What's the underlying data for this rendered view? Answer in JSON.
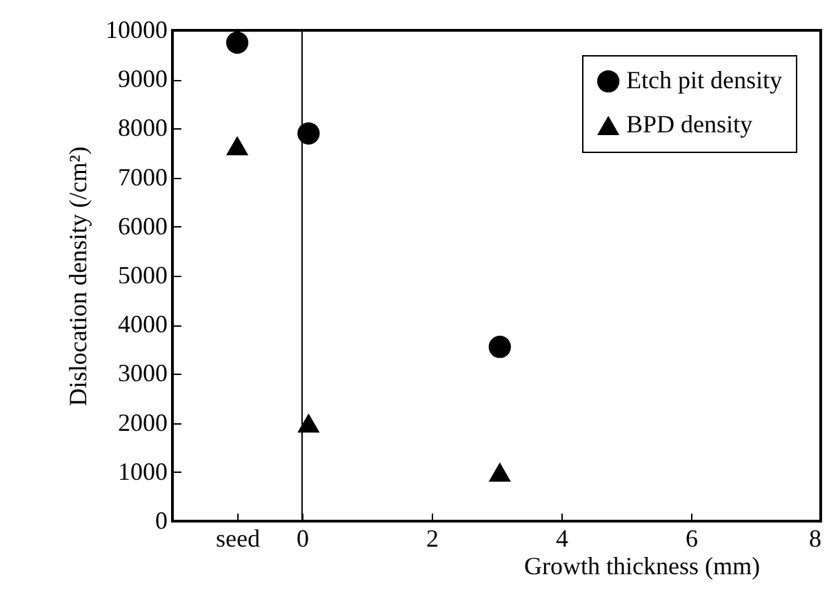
{
  "chart_data": {
    "type": "scatter",
    "xlabel": "Growth thickness (mm)",
    "ylabel": "Dislocation density (/cm²)",
    "xlim": [
      -2,
      8
    ],
    "xticks": [
      {
        "value": -1,
        "label": "seed"
      },
      0,
      2,
      4,
      6,
      8
    ],
    "ylim": [
      0,
      10000
    ],
    "yticks": [
      0,
      1000,
      2000,
      3000,
      4000,
      5000,
      6000,
      7000,
      8000,
      9000,
      10000
    ],
    "grid": false,
    "legend": "top right",
    "ref_lines": [
      {
        "axis": "x",
        "value": 0,
        "color": "#000000"
      }
    ],
    "series": [
      {
        "name": "Etch pit density",
        "color": "#000000",
        "marker": "circle",
        "x": [
          -1,
          0.1,
          3.05
        ],
        "values": [
          9750,
          7900,
          3550
        ]
      },
      {
        "name": "BPD density",
        "color": "#000000",
        "marker": "triangle",
        "x": [
          -1,
          0.1,
          3.05
        ],
        "values": [
          7650,
          2000,
          1000
        ]
      }
    ]
  }
}
